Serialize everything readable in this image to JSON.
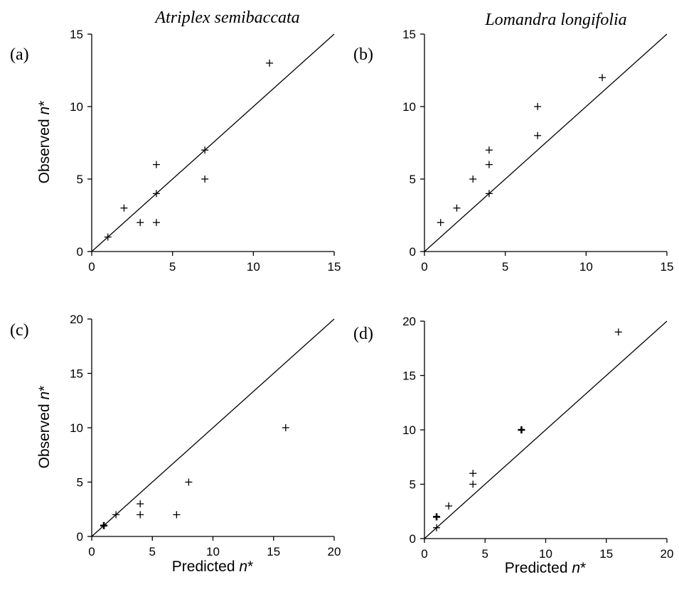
{
  "column_titles": [
    "Atriplex semibaccata",
    "Lomandra longifolia"
  ],
  "chart_data": [
    {
      "type": "scatter",
      "panel_label": "(a)",
      "ylabel": "Observed n*",
      "xlabel": "",
      "xlim": [
        0,
        15
      ],
      "ylim": [
        0,
        15
      ],
      "xticks": [
        0,
        5,
        10,
        15
      ],
      "yticks": [
        0,
        5,
        10,
        15
      ],
      "reference_line": "y = x",
      "marker": "+",
      "points": [
        {
          "x": 1,
          "y": 1
        },
        {
          "x": 2,
          "y": 3
        },
        {
          "x": 3,
          "y": 2
        },
        {
          "x": 4,
          "y": 2
        },
        {
          "x": 4,
          "y": 4
        },
        {
          "x": 4,
          "y": 6
        },
        {
          "x": 7,
          "y": 5
        },
        {
          "x": 7,
          "y": 7
        },
        {
          "x": 11,
          "y": 13
        }
      ]
    },
    {
      "type": "scatter",
      "panel_label": "(b)",
      "ylabel": "",
      "xlabel": "",
      "xlim": [
        0,
        15
      ],
      "ylim": [
        0,
        15
      ],
      "xticks": [
        0,
        5,
        10,
        15
      ],
      "yticks": [
        0,
        5,
        10,
        15
      ],
      "reference_line": "y = x",
      "marker": "+",
      "points": [
        {
          "x": 1,
          "y": 2
        },
        {
          "x": 2,
          "y": 3
        },
        {
          "x": 3,
          "y": 5
        },
        {
          "x": 4,
          "y": 4
        },
        {
          "x": 4,
          "y": 6
        },
        {
          "x": 4,
          "y": 7
        },
        {
          "x": 7,
          "y": 8
        },
        {
          "x": 7,
          "y": 10
        },
        {
          "x": 11,
          "y": 12
        }
      ]
    },
    {
      "type": "scatter",
      "panel_label": "(c)",
      "ylabel": "Observed n*",
      "xlabel": "Predicted n*",
      "xlim": [
        0,
        20
      ],
      "ylim": [
        0,
        20
      ],
      "xticks": [
        0,
        5,
        10,
        15,
        20
      ],
      "yticks": [
        0,
        5,
        10,
        15,
        20
      ],
      "reference_line": "y = x",
      "marker": "+",
      "points": [
        {
          "x": 1,
          "y": 1,
          "bold": true
        },
        {
          "x": 2,
          "y": 2
        },
        {
          "x": 4,
          "y": 2
        },
        {
          "x": 4,
          "y": 3
        },
        {
          "x": 7,
          "y": 2
        },
        {
          "x": 8,
          "y": 5
        },
        {
          "x": 16,
          "y": 10
        }
      ]
    },
    {
      "type": "scatter",
      "panel_label": "(d)",
      "ylabel": "",
      "xlabel": "Predicted n*",
      "xlim": [
        0,
        20
      ],
      "ylim": [
        0,
        20
      ],
      "xticks": [
        0,
        5,
        10,
        15,
        20
      ],
      "yticks": [
        0,
        5,
        10,
        15,
        20
      ],
      "reference_line": "y = x",
      "marker": "+",
      "points": [
        {
          "x": 1,
          "y": 1
        },
        {
          "x": 1,
          "y": 2,
          "bold": true
        },
        {
          "x": 2,
          "y": 3
        },
        {
          "x": 4,
          "y": 5
        },
        {
          "x": 4,
          "y": 6
        },
        {
          "x": 8,
          "y": 10,
          "bold": true
        },
        {
          "x": 16,
          "y": 19
        }
      ]
    }
  ]
}
